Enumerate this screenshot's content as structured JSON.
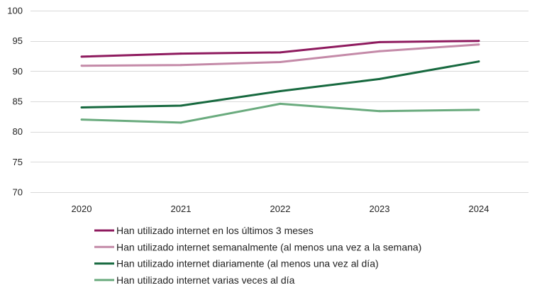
{
  "chart_data": {
    "type": "line",
    "title": "",
    "xlabel": "",
    "ylabel": "",
    "categories": [
      "2020",
      "2021",
      "2022",
      "2023",
      "2024"
    ],
    "ylim": [
      70,
      100
    ],
    "yticks": [
      70,
      75,
      80,
      85,
      90,
      95,
      100
    ],
    "grid": true,
    "legend_position": "bottom",
    "series": [
      {
        "name": "Han utilizado internet en los últimos 3 meses",
        "color": "#8e1a5e",
        "values": [
          92.4,
          92.9,
          93.1,
          94.8,
          95.0
        ]
      },
      {
        "name": "Han utilizado internet semanalmente (al menos una vez a la semana)",
        "color": "#c48aa8",
        "values": [
          90.9,
          91.0,
          91.5,
          93.3,
          94.4
        ]
      },
      {
        "name": "Han utilizado internet diariamente (al menos una vez al día)",
        "color": "#17693f",
        "values": [
          84.0,
          84.3,
          86.7,
          88.7,
          91.6
        ]
      },
      {
        "name": "Han utilizado internet varias veces al día",
        "color": "#6aab7e",
        "values": [
          82.0,
          81.5,
          84.6,
          83.4,
          83.6
        ]
      }
    ]
  }
}
